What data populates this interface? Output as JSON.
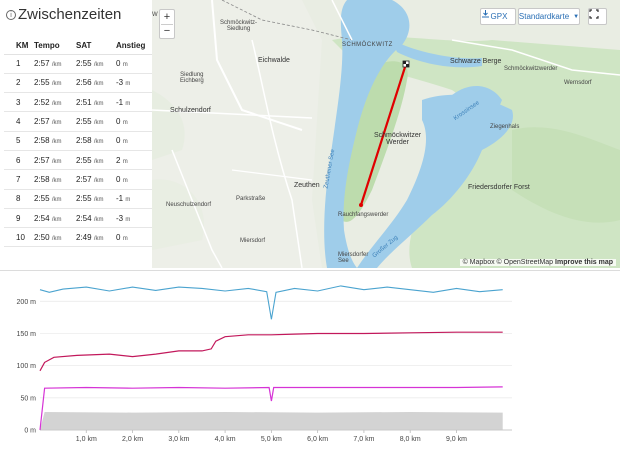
{
  "splits": {
    "title": "Zwischenzeiten",
    "info_icon": "info-icon",
    "columns": [
      "KM",
      "Tempo",
      "SAT",
      "Anstieg"
    ],
    "unit_pace": "/km",
    "unit_alt": "m",
    "rows": [
      {
        "km": "1",
        "tempo": "2:57",
        "sat": "2:55",
        "anstieg": "0"
      },
      {
        "km": "2",
        "tempo": "2:55",
        "sat": "2:56",
        "anstieg": "-3"
      },
      {
        "km": "3",
        "tempo": "2:52",
        "sat": "2:51",
        "anstieg": "-1"
      },
      {
        "km": "4",
        "tempo": "2:57",
        "sat": "2:55",
        "anstieg": "0"
      },
      {
        "km": "5",
        "tempo": "2:58",
        "sat": "2:58",
        "anstieg": "0"
      },
      {
        "km": "6",
        "tempo": "2:57",
        "sat": "2:55",
        "anstieg": "2"
      },
      {
        "km": "7",
        "tempo": "2:58",
        "sat": "2:57",
        "anstieg": "0"
      },
      {
        "km": "8",
        "tempo": "2:55",
        "sat": "2:55",
        "anstieg": "-1"
      },
      {
        "km": "9",
        "tempo": "2:54",
        "sat": "2:54",
        "anstieg": "-3"
      },
      {
        "km": "10",
        "tempo": "2:50",
        "sat": "2:49",
        "anstieg": "0"
      }
    ]
  },
  "map": {
    "zoom_in": "+",
    "zoom_out": "−",
    "gpx_label": "GPX",
    "map_style_label": "Standardkarte",
    "attribution": {
      "mapbox": "© Mapbox",
      "osm": "© OpenStreetMap",
      "improve": "Improve this map"
    },
    "labels": {
      "w": "W",
      "schmoeckwitz_siedlung": "Schmöckwitz-\nSiedlung",
      "eichwalde": "Eichwalde",
      "schmoeckwitz": "SCHMÖCKWITZ",
      "schwarze_berge": "Schwarze Berge",
      "schmoeckwitzwerder": "Schmöckwitzwerder",
      "siedlung_eichberg": "Siedlung\nEichberg",
      "schulzendorf": "Schulzendorf",
      "wernsdorf": "Wernsdorf",
      "krossinsee": "Krossinsee",
      "ziegenhals": "Ziegenhals",
      "schmoeckwitzer_werder": "Schmöckwitzer\nWerder",
      "zeuthener_see": "Zeuthener See",
      "friedersdorfer_forst": "Friedersdorfer Forst",
      "zeuthen": "Zeuthen",
      "neuschulzendorf": "Neuschulzendorf",
      "parkstrasse": "Parkstraße",
      "rauchfangswerder": "Rauchfangswerder",
      "miersdorf": "Miersdorf",
      "miersdorfer_see": "Miersdorfer\nSee",
      "grosser_zug": "Großer Zug"
    }
  },
  "chart_data": {
    "type": "line",
    "xlabel": "",
    "ylabel": "",
    "x_ticks": [
      "1,0 km",
      "2,0 km",
      "3,0 km",
      "4,0 km",
      "5,0 km",
      "6,0 km",
      "7,0 km",
      "8,0 km",
      "9,0 km"
    ],
    "y_ticks": [
      "0 m",
      "50 m",
      "100 m",
      "150 m",
      "200 m"
    ],
    "xlim": [
      0,
      10.2
    ],
    "ylim": [
      0,
      230
    ],
    "series": [
      {
        "color": "#4aa3cf",
        "x": [
          0,
          0.2,
          0.5,
          1.0,
          1.5,
          2.0,
          2.5,
          3.0,
          3.5,
          4.0,
          4.5,
          4.9,
          5.0,
          5.1,
          5.5,
          6.0,
          6.5,
          7.0,
          7.5,
          8.0,
          8.5,
          9.0,
          9.5,
          10.0
        ],
        "y": [
          218,
          214,
          219,
          222,
          216,
          222,
          217,
          222,
          220,
          216,
          220,
          215,
          172,
          214,
          220,
          216,
          224,
          218,
          222,
          218,
          214,
          220,
          215,
          218
        ]
      },
      {
        "color": "#c2185b",
        "x": [
          0,
          0.1,
          0.3,
          0.8,
          1.5,
          2.0,
          2.5,
          3.0,
          3.5,
          3.7,
          3.8,
          4.0,
          4.5,
          5.0,
          5.5,
          6.0,
          7.0,
          8.0,
          9.0,
          10.0
        ],
        "y": [
          92,
          105,
          113,
          116,
          118,
          114,
          118,
          123,
          123,
          126,
          138,
          145,
          148,
          148,
          149,
          150,
          150,
          151,
          152,
          152
        ]
      },
      {
        "color": "#d633d6",
        "x": [
          0,
          0.1,
          1.0,
          2.0,
          3.0,
          4.0,
          4.95,
          5.0,
          5.05,
          6.0,
          7.0,
          8.0,
          9.0,
          10.0
        ],
        "y": [
          0,
          65,
          66,
          65,
          66,
          65,
          66,
          45,
          66,
          66,
          66,
          66,
          66,
          67
        ]
      },
      {
        "color": "#c8c8c8",
        "x": [
          0,
          0.1,
          2.0,
          4.0,
          6.0,
          8.0,
          10.0
        ],
        "y": [
          0,
          28,
          27,
          28,
          27,
          28,
          27
        ]
      }
    ]
  }
}
